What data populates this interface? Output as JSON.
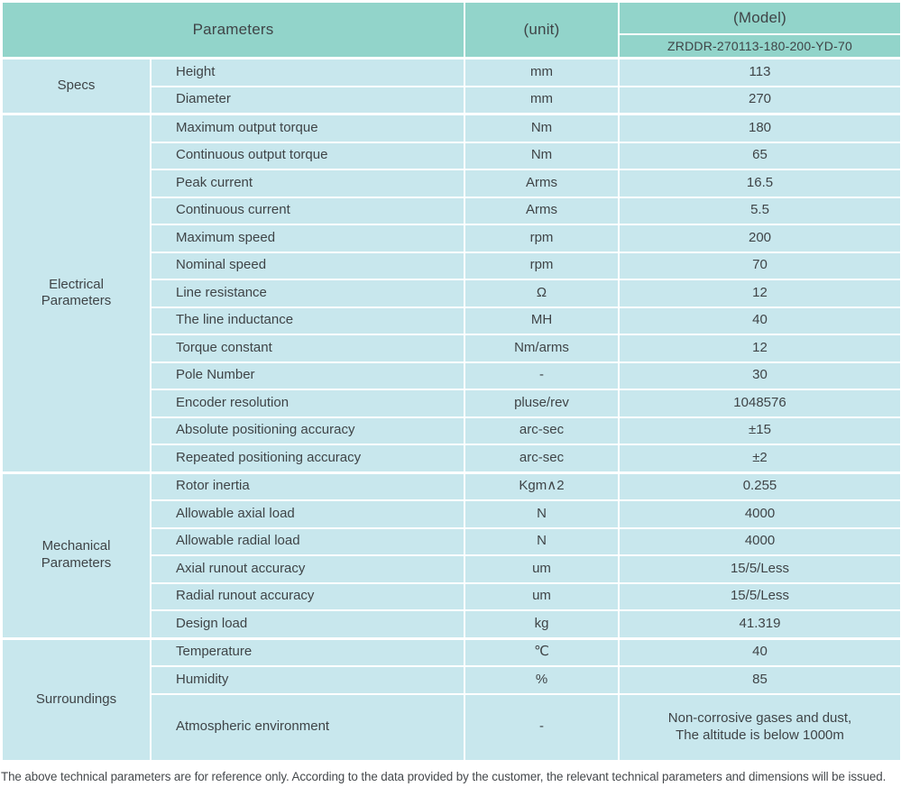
{
  "table": {
    "header": {
      "parameters_label": "Parameters",
      "unit_label": "(unit)",
      "model_label": "(Model)",
      "model_value": "ZRDDR-270113-180-200-YD-70"
    },
    "sections": [
      {
        "name": "Specs",
        "rows": [
          {
            "param": "Height",
            "unit": "mm",
            "value": "113"
          },
          {
            "param": "Diameter",
            "unit": "mm",
            "value": "270"
          }
        ]
      },
      {
        "name": "Electrical\nParameters",
        "rows": [
          {
            "param": "Maximum output torque",
            "unit": "Nm",
            "value": "180"
          },
          {
            "param": "Continuous output torque",
            "unit": "Nm",
            "value": "65"
          },
          {
            "param": "Peak current",
            "unit": "Arms",
            "value": "16.5"
          },
          {
            "param": "Continuous current",
            "unit": "Arms",
            "value": "5.5"
          },
          {
            "param": "Maximum speed",
            "unit": "rpm",
            "value": "200"
          },
          {
            "param": "Nominal speed",
            "unit": "rpm",
            "value": "70"
          },
          {
            "param": "Line resistance",
            "unit": "Ω",
            "value": "12"
          },
          {
            "param": "The line inductance",
            "unit": "MH",
            "value": "40"
          },
          {
            "param": "Torque constant",
            "unit": "Nm/arms",
            "value": "12"
          },
          {
            "param": "Pole Number",
            "unit": "-",
            "value": "30"
          },
          {
            "param": "Encoder resolution",
            "unit": "pluse/rev",
            "value": "1048576"
          },
          {
            "param": "Absolute positioning accuracy",
            "unit": "arc-sec",
            "value": "±15"
          },
          {
            "param": "Repeated positioning accuracy",
            "unit": "arc-sec",
            "value": "±2"
          }
        ]
      },
      {
        "name": "Mechanical\nParameters",
        "rows": [
          {
            "param": "Rotor inertia",
            "unit": "Kgm∧2",
            "value": "0.255"
          },
          {
            "param": "Allowable axial load",
            "unit": "N",
            "value": "4000"
          },
          {
            "param": "Allowable radial load",
            "unit": "N",
            "value": "4000"
          },
          {
            "param": "Axial runout accuracy",
            "unit": "um",
            "value": "15/5/Less"
          },
          {
            "param": "Radial runout accuracy",
            "unit": "um",
            "value": "15/5/Less"
          },
          {
            "param": "Design load",
            "unit": "kg",
            "value": "41.319"
          }
        ]
      },
      {
        "name": "Surroundings",
        "rows": [
          {
            "param": "Temperature",
            "unit": "℃",
            "value": "40"
          },
          {
            "param": "Humidity",
            "unit": "%",
            "value": "85"
          },
          {
            "param": "Atmospheric environment",
            "unit": "-",
            "value": "Non-corrosive gases and dust,\nThe altitude is below 1000m"
          }
        ]
      }
    ]
  },
  "footer_note": "The above technical parameters are for reference only. According to the data provided by the customer, the relevant technical parameters and dimensions will be issued.",
  "colors": {
    "header_bg": "#92d4ca",
    "body_bg": "#c8e7ed",
    "border": "#ffffff",
    "text": "#3f4447"
  }
}
